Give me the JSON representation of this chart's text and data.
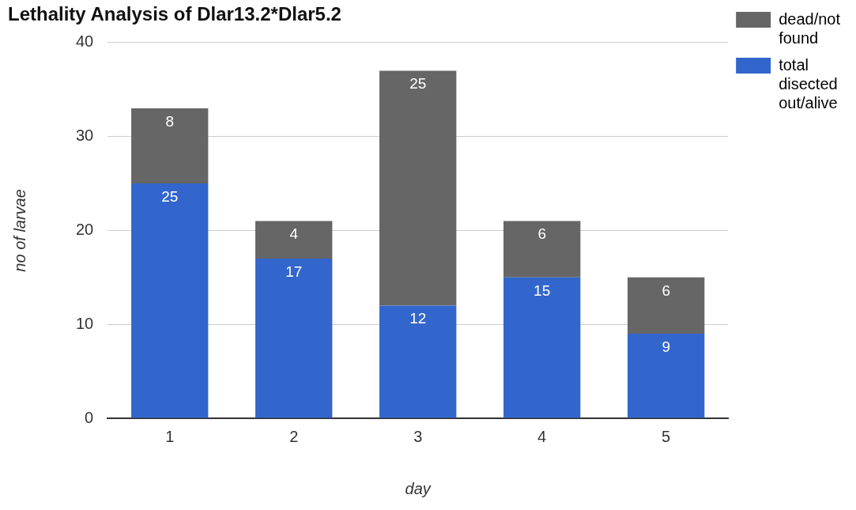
{
  "chart_data": {
    "type": "bar",
    "title": "Lethality Analysis of Dlar13.2*Dlar5.2",
    "xlabel": "day",
    "ylabel": "no of larvae",
    "categories": [
      "1",
      "2",
      "3",
      "4",
      "5"
    ],
    "stacked": true,
    "data_labels": true,
    "legend": "right",
    "grid": "y",
    "ylim": [
      0,
      40
    ],
    "yticks": [
      0,
      10,
      20,
      30,
      40
    ],
    "series": [
      {
        "name": "total disected out/alive",
        "color": "#3366cc",
        "values": [
          25,
          17,
          12,
          15,
          9
        ]
      },
      {
        "name": "dead/not found",
        "color": "#666666",
        "values": [
          8,
          4,
          25,
          6,
          6
        ]
      }
    ]
  }
}
